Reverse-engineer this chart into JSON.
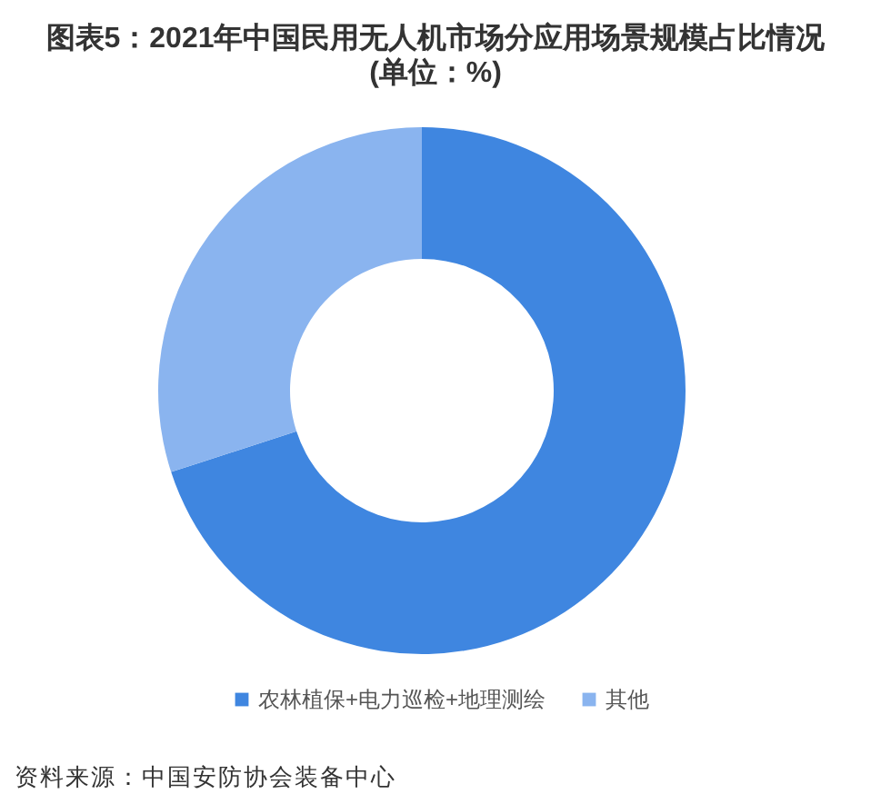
{
  "chart_data": {
    "type": "donut",
    "title": "图表5：2021年中国民用无人机市场分应用场景规模占比情况",
    "subtitle": "(单位：%)",
    "categories": [
      "农林植保+电力巡检+地理测绘",
      "其他"
    ],
    "values": [
      70,
      30
    ],
    "colors": [
      "#3f86e0",
      "#8ab4ef"
    ],
    "legend": "bottom",
    "annotations": [
      "资料来源：中国安防协会装备中心"
    ]
  }
}
